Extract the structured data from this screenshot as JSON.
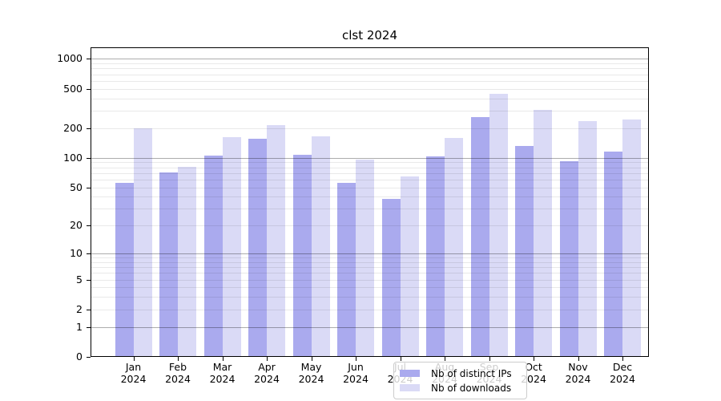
{
  "chart_data": {
    "type": "bar",
    "title": "clst 2024",
    "categories": [
      "Jan",
      "Feb",
      "Mar",
      "Apr",
      "May",
      "Jun",
      "Jul",
      "Aug",
      "Sep",
      "Oct",
      "Nov",
      "Dec"
    ],
    "year_label": "2024",
    "series": [
      {
        "name": "Nb of distinct IPs",
        "color": "#aaaaee",
        "values": [
          55,
          71,
          106,
          155,
          108,
          55,
          38,
          103,
          258,
          132,
          92,
          115
        ]
      },
      {
        "name": "Nb of downloads",
        "color": "#dadaf6",
        "values": [
          200,
          81,
          162,
          215,
          166,
          95,
          65,
          160,
          440,
          305,
          235,
          245
        ]
      }
    ],
    "yticks": [
      0,
      1,
      2,
      5,
      10,
      20,
      50,
      100,
      200,
      500,
      1000
    ],
    "yscale": "log1p",
    "ylim": [
      0,
      1300
    ],
    "grid": true,
    "legend_position": "inside-bottom-center",
    "background": "#ffffff",
    "axis_color": "#000000",
    "major_grid_color": "#b0b0b0",
    "minor_grid_color": "#e8e8e8"
  }
}
